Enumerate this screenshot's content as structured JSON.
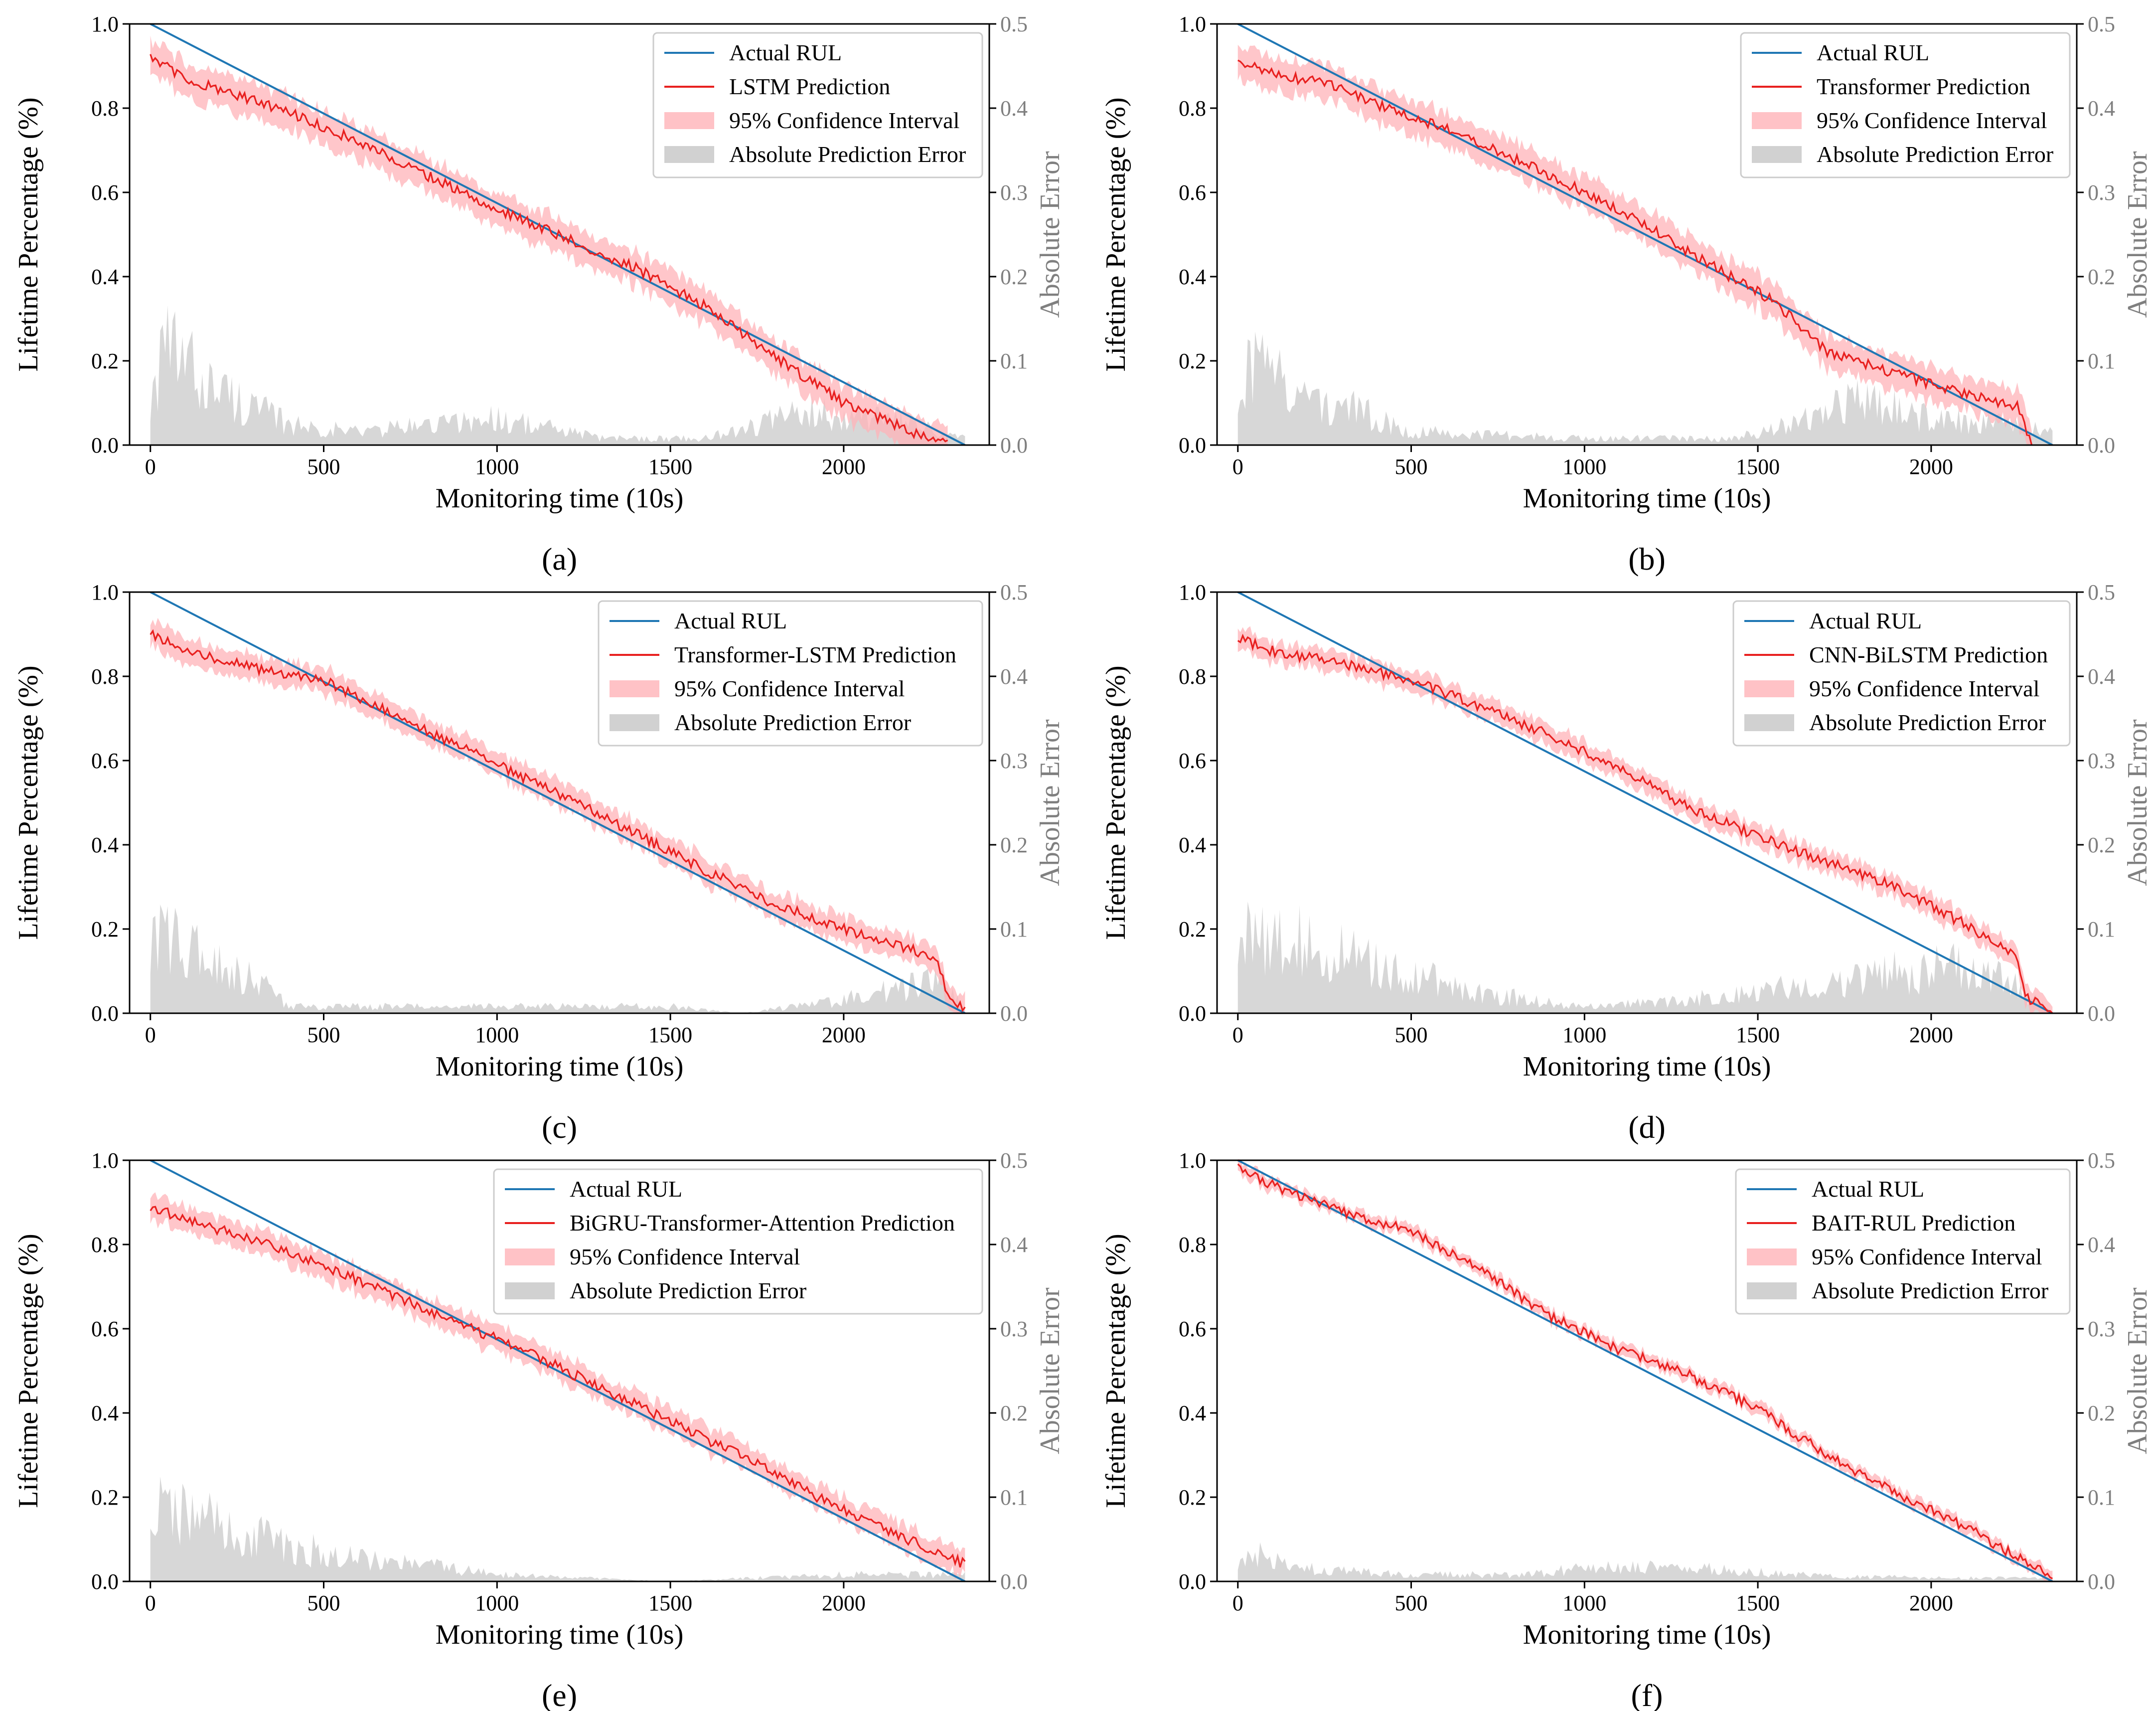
{
  "chart_data": [
    {
      "type": "line",
      "caption": "(a)",
      "model": "LSTM",
      "xlabel": "Monitoring time (10s)",
      "ylabel": "Lifetime Percentage (%)",
      "ylabel_right": "Absolute Error",
      "xlim": [
        -60,
        2420
      ],
      "ylim": [
        0,
        1.0
      ],
      "ylim_right": [
        0,
        0.5
      ],
      "x_ticks": [
        0,
        500,
        1000,
        1500,
        2000
      ],
      "y_ticks": [
        "0.0",
        "0.2",
        "0.4",
        "0.6",
        "0.8",
        "1.0"
      ],
      "y_ticks_right": [
        "0.0",
        "0.1",
        "0.2",
        "0.3",
        "0.4",
        "0.5"
      ],
      "legend_position": "top-right",
      "legend": [
        "Actual RUL",
        "LSTM Prediction",
        "95% Confidence Interval",
        "Absolute Prediction Error"
      ],
      "series": [
        {
          "name": "Actual RUL",
          "x": [
            0,
            2350
          ],
          "values": [
            1.0,
            0.0
          ]
        },
        {
          "name": "LSTM Prediction",
          "x": [
            0,
            100,
            250,
            400,
            600,
            800,
            1000,
            1200,
            1400,
            1600,
            1800,
            2000,
            2200,
            2300
          ],
          "values": [
            0.92,
            0.87,
            0.83,
            0.79,
            0.72,
            0.64,
            0.56,
            0.49,
            0.42,
            0.33,
            0.21,
            0.1,
            0.03,
            0.01
          ]
        },
        {
          "name": "95% Confidence Interval",
          "half_width": 0.04
        },
        {
          "name": "Absolute Prediction Error",
          "axis": "right",
          "x": [
            0,
            50,
            200,
            400,
            600,
            1000,
            1300,
            1600,
            1900,
            2100,
            2350
          ],
          "values": [
            0.07,
            0.14,
            0.08,
            0.03,
            0.02,
            0.04,
            0.01,
            0.01,
            0.05,
            0.04,
            0.01
          ]
        }
      ]
    },
    {
      "type": "line",
      "caption": "(b)",
      "model": "Transformer",
      "xlabel": "Monitoring time (10s)",
      "ylabel": "Lifetime Percentage (%)",
      "ylabel_right": "Absolute Error",
      "xlim": [
        -60,
        2420
      ],
      "ylim": [
        0,
        1.0
      ],
      "ylim_right": [
        0,
        0.5
      ],
      "x_ticks": [
        0,
        500,
        1000,
        1500,
        2000
      ],
      "y_ticks": [
        "0.0",
        "0.2",
        "0.4",
        "0.6",
        "0.8",
        "1.0"
      ],
      "y_ticks_right": [
        "0.0",
        "0.1",
        "0.2",
        "0.3",
        "0.4",
        "0.5"
      ],
      "legend_position": "top-right",
      "legend": [
        "Actual RUL",
        "Transformer Prediction",
        "95% Confidence Interval",
        "Absolute Prediction Error"
      ],
      "series": [
        {
          "name": "Actual RUL",
          "x": [
            0,
            2350
          ],
          "values": [
            1.0,
            0.0
          ]
        },
        {
          "name": "Transformer Prediction",
          "x": [
            0,
            100,
            250,
            400,
            600,
            800,
            1000,
            1200,
            1400,
            1550,
            1700,
            1900,
            2100,
            2250,
            2290
          ],
          "values": [
            0.91,
            0.88,
            0.86,
            0.81,
            0.75,
            0.68,
            0.6,
            0.51,
            0.41,
            0.34,
            0.22,
            0.17,
            0.12,
            0.09,
            0.0
          ]
        },
        {
          "name": "95% Confidence Interval",
          "half_width": 0.04
        },
        {
          "name": "Absolute Prediction Error",
          "axis": "right",
          "x": [
            0,
            50,
            200,
            350,
            500,
            1000,
            1400,
            1600,
            1750,
            2000,
            2200,
            2350
          ],
          "values": [
            0.08,
            0.12,
            0.07,
            0.05,
            0.02,
            0.01,
            0.01,
            0.03,
            0.07,
            0.04,
            0.03,
            0.02
          ]
        }
      ]
    },
    {
      "type": "line",
      "caption": "(c)",
      "model": "Transformer-LSTM",
      "xlabel": "Monitoring time (10s)",
      "ylabel": "Lifetime Percentage (%)",
      "ylabel_right": "Absolute Error",
      "xlim": [
        -60,
        2420
      ],
      "ylim": [
        0,
        1.0
      ],
      "ylim_right": [
        0,
        0.5
      ],
      "x_ticks": [
        0,
        500,
        1000,
        1500,
        2000
      ],
      "y_ticks": [
        "0.0",
        "0.2",
        "0.4",
        "0.6",
        "0.8",
        "1.0"
      ],
      "y_ticks_right": [
        "0.0",
        "0.1",
        "0.2",
        "0.3",
        "0.4",
        "0.5"
      ],
      "legend_position": "top-right",
      "legend": [
        "Actual RUL",
        "Transformer-LSTM Prediction",
        "95% Confidence Interval",
        "Absolute Prediction Error"
      ],
      "series": [
        {
          "name": "Actual RUL",
          "x": [
            0,
            2350
          ],
          "values": [
            1.0,
            0.0
          ]
        },
        {
          "name": "Transformer-LSTM Prediction",
          "x": [
            0,
            100,
            300,
            500,
            700,
            1000,
            1300,
            1600,
            1800,
            2000,
            2200,
            2270,
            2300,
            2350
          ],
          "values": [
            0.9,
            0.86,
            0.82,
            0.79,
            0.71,
            0.59,
            0.47,
            0.34,
            0.26,
            0.2,
            0.15,
            0.13,
            0.04,
            0.01
          ]
        },
        {
          "name": "95% Confidence Interval",
          "half_width": 0.03
        },
        {
          "name": "Absolute Prediction Error",
          "axis": "right",
          "x": [
            0,
            50,
            150,
            300,
            400,
            1000,
            1500,
            1700,
            2000,
            2200,
            2290,
            2350
          ],
          "values": [
            0.09,
            0.12,
            0.08,
            0.05,
            0.01,
            0.01,
            0.01,
            0.0,
            0.02,
            0.04,
            0.05,
            0.0
          ]
        }
      ]
    },
    {
      "type": "line",
      "caption": "(d)",
      "model": "CNN-BiLSTM",
      "xlabel": "Monitoring time (10s)",
      "ylabel": "Lifetime Percentage (%)",
      "ylabel_right": "Absolute Error",
      "xlim": [
        -60,
        2420
      ],
      "ylim": [
        0,
        1.0
      ],
      "ylim_right": [
        0,
        0.5
      ],
      "x_ticks": [
        0,
        500,
        1000,
        1500,
        2000
      ],
      "y_ticks": [
        "0.0",
        "0.2",
        "0.4",
        "0.6",
        "0.8",
        "1.0"
      ],
      "y_ticks_right": [
        "0.0",
        "0.1",
        "0.2",
        "0.3",
        "0.4",
        "0.5"
      ],
      "legend_position": "top-right",
      "legend": [
        "Actual RUL",
        "CNN-BiLSTM Prediction",
        "95% Confidence Interval",
        "Absolute Prediction Error"
      ],
      "series": [
        {
          "name": "Actual RUL",
          "x": [
            0,
            2350
          ],
          "values": [
            1.0,
            0.0
          ]
        },
        {
          "name": "CNN-BiLSTM Prediction",
          "x": [
            0,
            100,
            300,
            500,
            700,
            900,
            1100,
            1300,
            1500,
            1700,
            1900,
            2100,
            2250,
            2270,
            2350
          ],
          "values": [
            0.89,
            0.86,
            0.83,
            0.79,
            0.73,
            0.66,
            0.58,
            0.49,
            0.42,
            0.36,
            0.3,
            0.21,
            0.13,
            0.04,
            0.0
          ]
        },
        {
          "name": "95% Confidence Interval",
          "half_width": 0.025
        },
        {
          "name": "Absolute Prediction Error",
          "axis": "right",
          "x": [
            0,
            50,
            200,
            400,
            700,
            1000,
            1300,
            1600,
            1900,
            2100,
            2250,
            2350
          ],
          "values": [
            0.1,
            0.12,
            0.1,
            0.07,
            0.03,
            0.01,
            0.02,
            0.04,
            0.06,
            0.07,
            0.04,
            0.0
          ]
        }
      ]
    },
    {
      "type": "line",
      "caption": "(e)",
      "model": "BiGRU-Transformer-Attention",
      "xlabel": "Monitoring time (10s)",
      "ylabel": "Lifetime Percentage (%)",
      "ylabel_right": "Absolute Error",
      "xlim": [
        -60,
        2420
      ],
      "ylim": [
        0,
        1.0
      ],
      "ylim_right": [
        0,
        0.5
      ],
      "x_ticks": [
        0,
        500,
        1000,
        1500,
        2000
      ],
      "y_ticks": [
        "0.0",
        "0.2",
        "0.4",
        "0.6",
        "0.8",
        "1.0"
      ],
      "y_ticks_right": [
        "0.0",
        "0.1",
        "0.2",
        "0.3",
        "0.4",
        "0.5"
      ],
      "legend_position": "top-right",
      "legend": [
        "Actual RUL",
        "BiGRU-Transformer-Attention Prediction",
        "95% Confidence Interval",
        "Absolute Prediction Error"
      ],
      "series": [
        {
          "name": "Actual RUL",
          "x": [
            0,
            2350
          ],
          "values": [
            1.0,
            0.0
          ]
        },
        {
          "name": "BiGRU-Transformer-Attention Prediction",
          "x": [
            0,
            100,
            300,
            500,
            700,
            900,
            1100,
            1300,
            1500,
            1700,
            1900,
            2100,
            2300,
            2350
          ],
          "values": [
            0.89,
            0.86,
            0.81,
            0.75,
            0.68,
            0.61,
            0.54,
            0.46,
            0.38,
            0.3,
            0.21,
            0.13,
            0.06,
            0.04
          ]
        },
        {
          "name": "95% Confidence Interval",
          "half_width": 0.03
        },
        {
          "name": "Absolute Prediction Error",
          "axis": "right",
          "x": [
            0,
            50,
            200,
            400,
            700,
            1000,
            1500,
            2000,
            2350
          ],
          "values": [
            0.1,
            0.11,
            0.08,
            0.05,
            0.03,
            0.01,
            0.0,
            0.01,
            0.01
          ]
        }
      ]
    },
    {
      "type": "line",
      "caption": "(f)",
      "model": "BAIT-RUL",
      "xlabel": "Monitoring time (10s)",
      "ylabel": "Lifetime Percentage (%)",
      "ylabel_right": "Absolute Error",
      "xlim": [
        -60,
        2420
      ],
      "ylim": [
        0,
        1.0
      ],
      "ylim_right": [
        0,
        0.5
      ],
      "x_ticks": [
        0,
        500,
        1000,
        1500,
        2000
      ],
      "y_ticks": [
        "0.0",
        "0.2",
        "0.4",
        "0.6",
        "0.8",
        "1.0"
      ],
      "y_ticks_right": [
        "0.0",
        "0.1",
        "0.2",
        "0.3",
        "0.4",
        "0.5"
      ],
      "legend_position": "top-right",
      "legend": [
        "Actual RUL",
        "BAIT-RUL Prediction",
        "95% Confidence Interval",
        "Absolute Prediction Error"
      ],
      "series": [
        {
          "name": "Actual RUL",
          "x": [
            0,
            2350
          ],
          "values": [
            1.0,
            0.0
          ]
        },
        {
          "name": "BAIT-RUL Prediction",
          "x": [
            0,
            100,
            300,
            500,
            700,
            900,
            1100,
            1300,
            1500,
            1700,
            1900,
            2100,
            2300,
            2350
          ],
          "values": [
            0.98,
            0.94,
            0.88,
            0.83,
            0.74,
            0.63,
            0.55,
            0.49,
            0.41,
            0.3,
            0.21,
            0.13,
            0.03,
            0.01
          ]
        },
        {
          "name": "95% Confidence Interval",
          "half_width": 0.015
        },
        {
          "name": "Absolute Prediction Error",
          "axis": "right",
          "x": [
            0,
            50,
            150,
            300,
            500,
            800,
            1000,
            1300,
            1600,
            2000,
            2350
          ],
          "values": [
            0.02,
            0.04,
            0.02,
            0.015,
            0.01,
            0.01,
            0.02,
            0.02,
            0.01,
            0.005,
            0.005
          ]
        }
      ]
    }
  ],
  "colors": {
    "actual": "#1f77b4",
    "prediction": "#e8201f",
    "confidence": "#ffb3b8",
    "error": "#bebebe",
    "right_axis_text": "#7f7f7f"
  }
}
